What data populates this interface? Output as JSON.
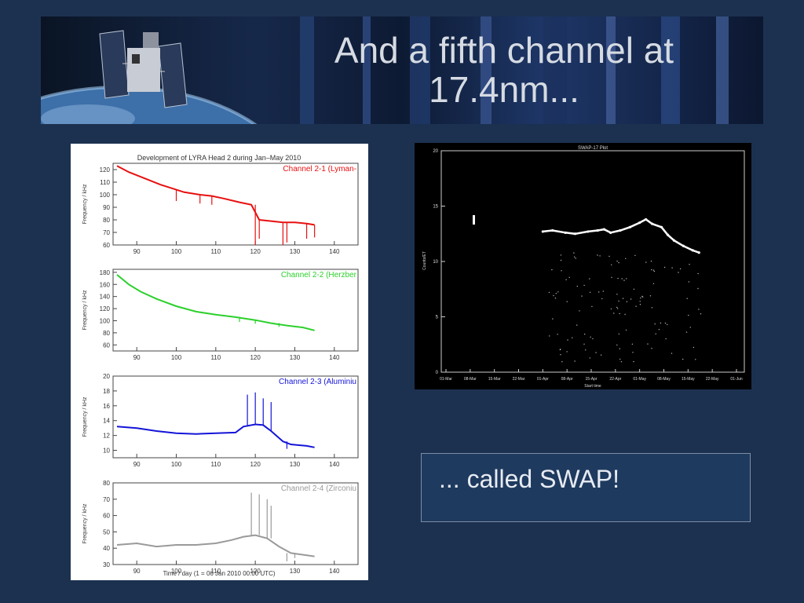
{
  "slide": {
    "title": "And a fifth channel at 17.4nm...",
    "title_line1": "And a fifth channel at",
    "title_line2": "17.4nm...",
    "callout": "... called SWAP!",
    "colors": {
      "background": "#1c3150",
      "callout_bg": "#1f3a5f",
      "callout_border": "#7d8ea6"
    }
  },
  "chart_data": [
    {
      "type": "line",
      "title": "Development of LYRA Head 2 during Jan–May 2010",
      "xlabel": "Time / day (1 = 06 Jan 2010 00:00 UTC)",
      "xlim": [
        84,
        146
      ],
      "xticks": [
        90,
        100,
        110,
        120,
        130,
        140
      ],
      "panels": [
        {
          "name": "Channel 2-1 (Lyman-",
          "color": "#e81010",
          "ylabel": "Frequency / kHz",
          "ylim": [
            60,
            125
          ],
          "yticks": [
            60,
            70,
            80,
            90,
            100,
            110,
            120
          ],
          "points": [
            [
              85,
              123
            ],
            [
              88,
              118
            ],
            [
              92,
              113
            ],
            [
              96,
              108
            ],
            [
              100,
              104
            ],
            [
              102,
              102
            ],
            [
              106,
              100
            ],
            [
              109,
              99
            ],
            [
              112,
              97
            ],
            [
              116,
              94
            ],
            [
              119,
              92
            ],
            [
              121,
              80
            ],
            [
              124,
              79
            ],
            [
              127,
              78
            ],
            [
              130,
              78
            ],
            [
              133,
              77
            ],
            [
              135,
              76
            ]
          ],
          "drops": [
            [
              100,
              95
            ],
            [
              106,
              93
            ],
            [
              109,
              92
            ],
            [
              120,
              60
            ],
            [
              121,
              65
            ],
            [
              127,
              60
            ],
            [
              128,
              62
            ],
            [
              133,
              65
            ],
            [
              135,
              66
            ]
          ]
        },
        {
          "name": "Channel 2-2 (Herzber",
          "color": "#2cd02c",
          "ylabel": "Frequency / kHz",
          "ylim": [
            50,
            185
          ],
          "yticks": [
            60,
            80,
            100,
            120,
            140,
            160,
            180
          ],
          "points": [
            [
              85,
              176
            ],
            [
              88,
              160
            ],
            [
              91,
              148
            ],
            [
              95,
              136
            ],
            [
              100,
              124
            ],
            [
              105,
              115
            ],
            [
              110,
              110
            ],
            [
              115,
              106
            ],
            [
              120,
              101
            ],
            [
              124,
              96
            ],
            [
              128,
              92
            ],
            [
              132,
              89
            ],
            [
              135,
              84
            ]
          ],
          "drops": [
            [
              116,
              98
            ],
            [
              120,
              95
            ],
            [
              126,
              90
            ]
          ]
        },
        {
          "name": "Channel 2-3 (Aluminiu",
          "color": "#1414d8",
          "ylabel": "Frequency / kHz",
          "ylim": [
            9,
            20
          ],
          "yticks": [
            10,
            12,
            14,
            16,
            18,
            20
          ],
          "points": [
            [
              85,
              13.2
            ],
            [
              90,
              13
            ],
            [
              95,
              12.6
            ],
            [
              100,
              12.3
            ],
            [
              105,
              12.2
            ],
            [
              110,
              12.3
            ],
            [
              115,
              12.4
            ],
            [
              117,
              13.2
            ],
            [
              120,
              13.5
            ],
            [
              122,
              13.4
            ],
            [
              124,
              12.6
            ],
            [
              127,
              11.2
            ],
            [
              129,
              10.8
            ],
            [
              133,
              10.6
            ],
            [
              135,
              10.4
            ]
          ],
          "drops": [
            [
              118,
              17.5
            ],
            [
              120,
              17.8
            ],
            [
              122,
              17
            ],
            [
              124,
              16.5
            ],
            [
              128,
              10.2
            ]
          ]
        },
        {
          "name": "Channel 2-4 (Zirconiu",
          "color": "#9a9a9a",
          "ylabel": "Frequency / kHz",
          "ylim": [
            30,
            80
          ],
          "yticks": [
            30,
            40,
            50,
            60,
            70,
            80
          ],
          "points": [
            [
              85,
              42
            ],
            [
              90,
              43
            ],
            [
              95,
              41
            ],
            [
              100,
              42
            ],
            [
              105,
              42
            ],
            [
              110,
              43
            ],
            [
              114,
              45
            ],
            [
              117,
              47
            ],
            [
              120,
              48
            ],
            [
              123,
              46
            ],
            [
              126,
              41
            ],
            [
              129,
              37
            ],
            [
              132,
              36
            ],
            [
              135,
              35
            ]
          ],
          "drops": [
            [
              119,
              74
            ],
            [
              121,
              73
            ],
            [
              123,
              70
            ],
            [
              124,
              66
            ],
            [
              128,
              32
            ],
            [
              130,
              34
            ]
          ]
        }
      ]
    },
    {
      "type": "scatter",
      "title": "SWAP-17 Plot",
      "ylabel": "Counts/ET",
      "yticks": [
        0,
        5,
        10,
        15,
        20
      ],
      "ylim": [
        0,
        20
      ],
      "xticks": [
        "01-Mar",
        "08-Mar",
        "15-Mar",
        "22-Mar",
        "01-Apr",
        "08-Apr",
        "15-Apr",
        "22-Apr",
        "01-May",
        "08-May",
        "15-May",
        "22-May",
        "01-Jun"
      ],
      "xlabel": "Start time",
      "series": [
        {
          "color": "#ffffff",
          "points": [
            [
              "01-Apr",
              12.7
            ],
            [
              "04-Apr",
              12.8
            ],
            [
              "08-Apr",
              12.6
            ],
            [
              "11-Apr",
              12.5
            ],
            [
              "15-Apr",
              12.7
            ],
            [
              "18-Apr",
              12.8
            ],
            [
              "20-Apr",
              12.9
            ],
            [
              "22-Apr",
              12.6
            ],
            [
              "25-Apr",
              12.8
            ],
            [
              "28-Apr",
              13.1
            ],
            [
              "01-May",
              13.5
            ],
            [
              "03-May",
              13.8
            ],
            [
              "05-May",
              13.4
            ],
            [
              "08-May",
              13.1
            ],
            [
              "10-May",
              12.4
            ],
            [
              "12-May",
              11.9
            ],
            [
              "15-May",
              11.4
            ],
            [
              "18-May",
              11.0
            ],
            [
              "20-May",
              10.8
            ]
          ]
        }
      ]
    }
  ]
}
